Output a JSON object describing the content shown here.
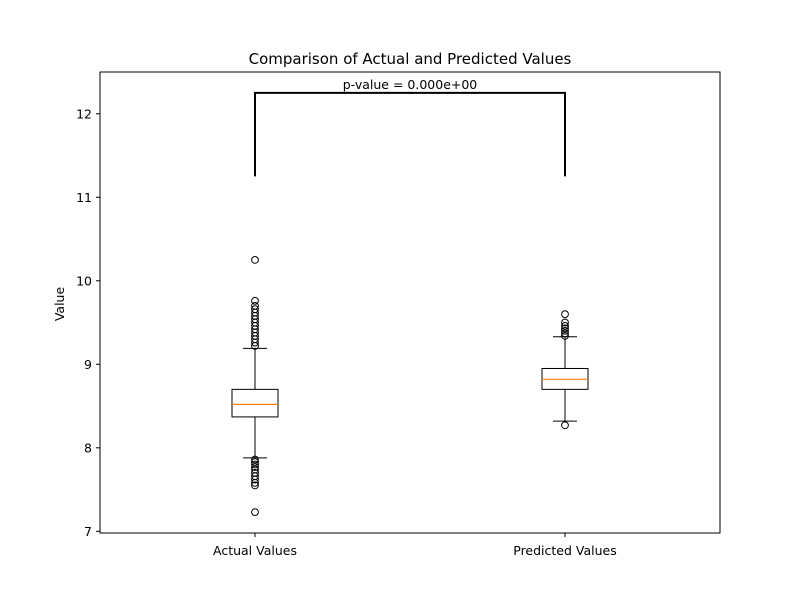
{
  "chart_data": {
    "type": "boxplot",
    "title": "Comparison of Actual and Predicted Values",
    "xlabel": "",
    "ylabel": "Value",
    "ylim": [
      6.98,
      12.5
    ],
    "yticks": [
      7,
      8,
      9,
      10,
      11,
      12
    ],
    "grid": false,
    "categories": [
      "Actual Values",
      "Predicted Values"
    ],
    "boxes": [
      {
        "name": "Actual Values",
        "whisker_low": 7.88,
        "q1": 8.37,
        "median": 8.52,
        "q3": 8.7,
        "whisker_high": 9.19,
        "outliers": [
          7.23,
          7.55,
          7.58,
          7.62,
          7.66,
          7.7,
          7.74,
          7.77,
          7.8,
          7.83,
          7.86,
          9.22,
          9.26,
          9.3,
          9.34,
          9.38,
          9.42,
          9.46,
          9.5,
          9.54,
          9.58,
          9.62,
          9.66,
          9.7,
          9.76,
          10.25
        ]
      },
      {
        "name": "Predicted Values",
        "whisker_low": 8.32,
        "q1": 8.7,
        "median": 8.82,
        "q3": 8.95,
        "whisker_high": 9.33,
        "outliers": [
          8.27,
          9.34,
          9.37,
          9.4,
          9.43,
          9.46,
          9.5,
          9.6
        ]
      }
    ],
    "annotation": {
      "text": "p-value = 0.000e+00",
      "bracket_bottom": 11.25,
      "bracket_top": 12.25
    },
    "colors": {
      "median": "#ff7f0e",
      "box": "#000000",
      "outlier": "#000000"
    }
  }
}
